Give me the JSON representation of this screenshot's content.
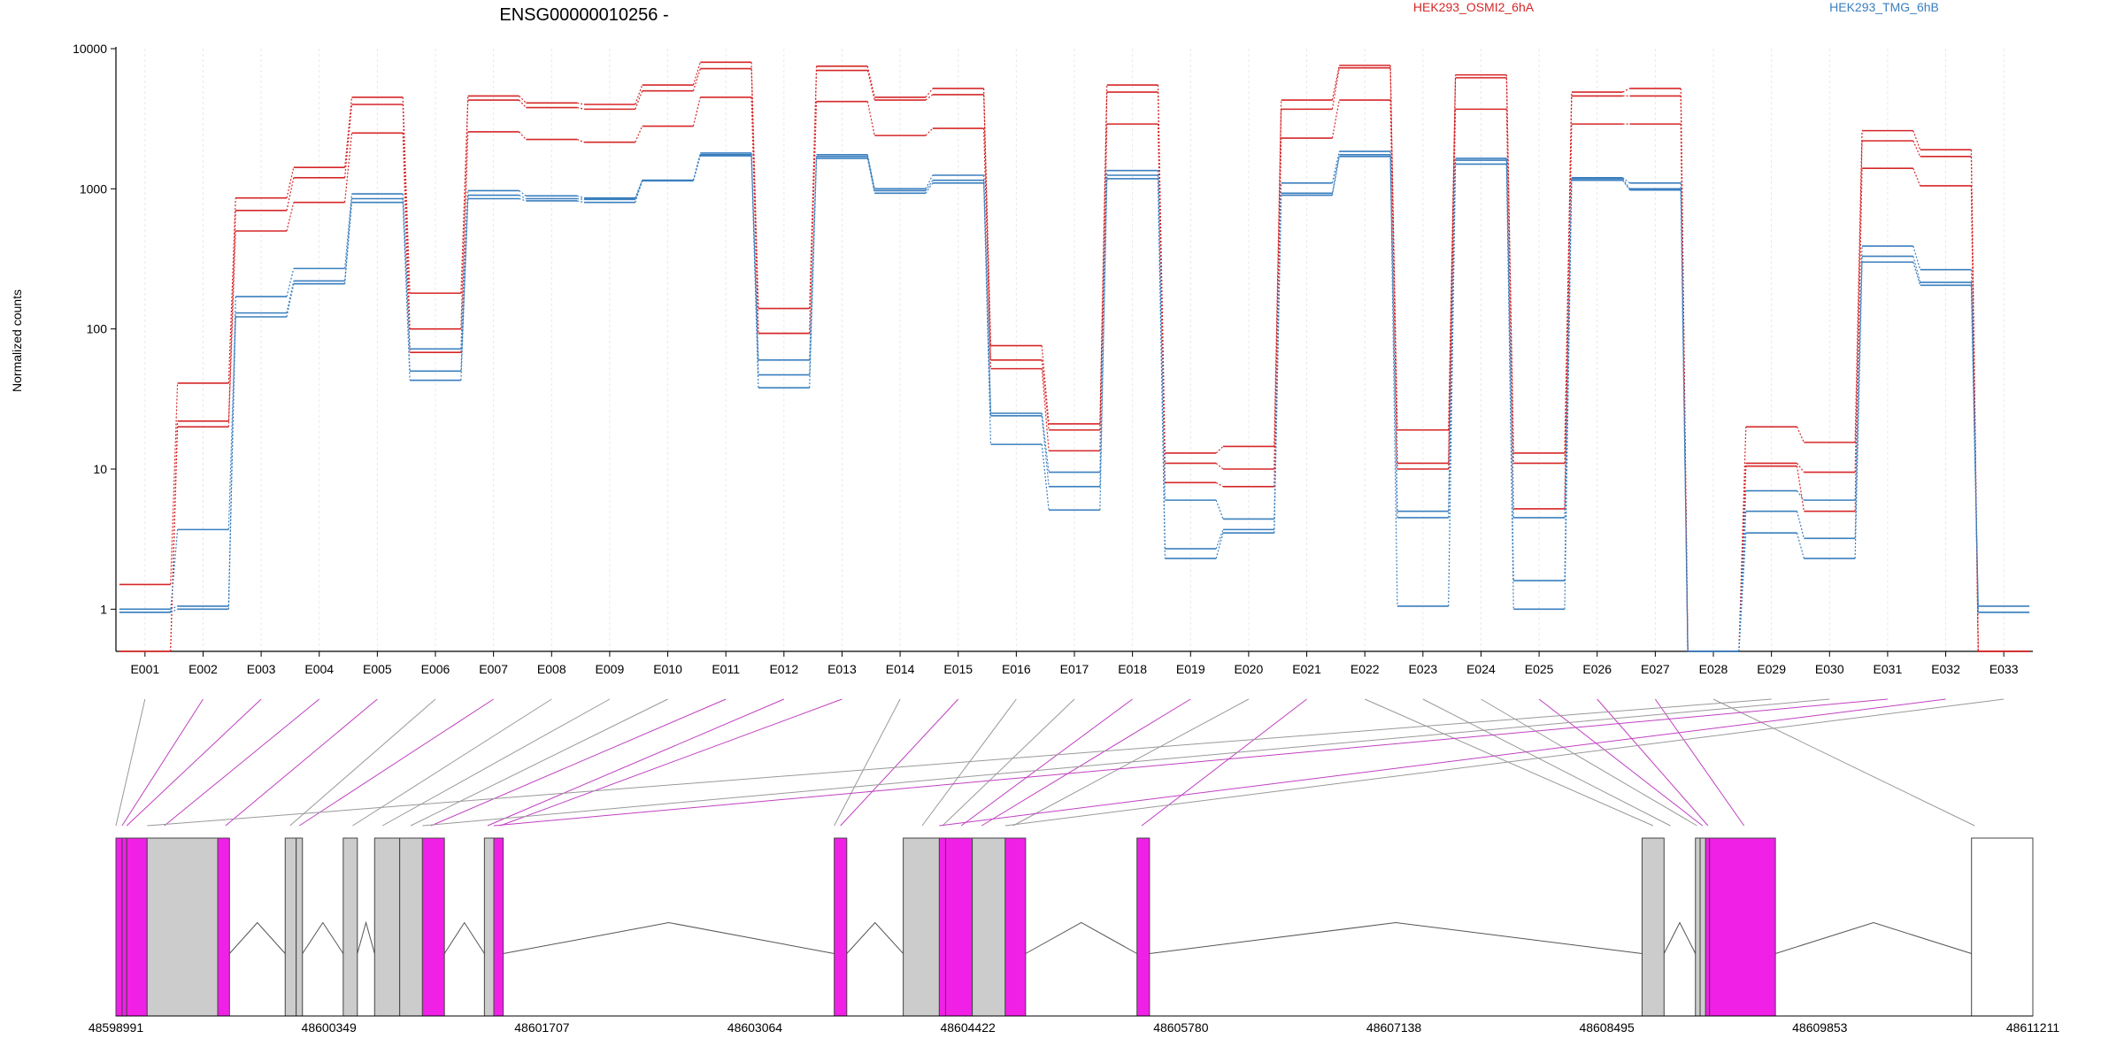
{
  "chart_data": {
    "type": "line",
    "title": "ENSG00000010256 -",
    "ylabel": "Normalized counts",
    "y_scale": "log",
    "ylim": [
      0.5,
      10000
    ],
    "y_ticks": [
      1,
      10,
      100,
      1000,
      10000
    ],
    "y_tick_labels": [
      "1",
      "10",
      "100",
      "1000",
      "10000"
    ],
    "categories": [
      "E001",
      "E002",
      "E003",
      "E004",
      "E005",
      "E006",
      "E007",
      "E008",
      "E009",
      "E010",
      "E011",
      "E012",
      "E013",
      "E014",
      "E015",
      "E016",
      "E017",
      "E018",
      "E019",
      "E020",
      "E021",
      "E022",
      "E023",
      "E024",
      "E025",
      "E026",
      "E027",
      "E028",
      "E029",
      "E030",
      "E031",
      "E032",
      "E033"
    ],
    "groups": [
      {
        "name": "HEK293_OSMI2_6hA",
        "color": "#d62728"
      },
      {
        "name": "HEK293_TMG_6hB",
        "color": "#3a7fbf"
      }
    ],
    "series": [
      {
        "group": 0,
        "values": [
          1.5,
          41,
          860,
          1420,
          4500,
          180,
          4600,
          4100,
          4000,
          5500,
          8000,
          140,
          7500,
          4500,
          5200,
          76,
          21,
          5500,
          13,
          14.5,
          4300,
          7600,
          19,
          6500,
          13,
          4900,
          5200,
          0.5,
          20,
          15.5,
          2600,
          1900,
          0.5
        ]
      },
      {
        "group": 0,
        "values": [
          0.5,
          22,
          700,
          1200,
          4000,
          100,
          4300,
          3800,
          3700,
          5000,
          7200,
          93,
          7000,
          4300,
          4700,
          60,
          19,
          4900,
          11,
          10,
          3700,
          7300,
          11,
          6200,
          11,
          4600,
          4600,
          0.5,
          11,
          9.5,
          2200,
          1700,
          0.5
        ]
      },
      {
        "group": 0,
        "values": [
          0.5,
          20,
          500,
          800,
          2500,
          68,
          2550,
          2250,
          2150,
          2800,
          4500,
          93,
          4200,
          2400,
          2700,
          52,
          13.5,
          2900,
          8,
          7.5,
          2300,
          4300,
          10,
          3700,
          5.2,
          2900,
          2900,
          0.5,
          10.5,
          5,
          1400,
          1050,
          0.5
        ]
      },
      {
        "group": 1,
        "values": [
          1.0,
          1.05,
          170,
          270,
          920,
          72,
          970,
          890,
          860,
          1150,
          1800,
          60,
          1750,
          1000,
          1250,
          25,
          9.5,
          1350,
          6,
          4.4,
          1100,
          1850,
          5,
          1650,
          4.5,
          1200,
          1100,
          0.5,
          7,
          6,
          390,
          265,
          1.05
        ]
      },
      {
        "group": 1,
        "values": [
          0.95,
          3.7,
          130,
          220,
          850,
          50,
          900,
          850,
          840,
          1150,
          1750,
          47,
          1700,
          970,
          1150,
          24,
          7.5,
          1250,
          2.7,
          3.7,
          930,
          1750,
          4.5,
          1600,
          1.6,
          1180,
          1000,
          0.5,
          5,
          3.2,
          330,
          215,
          0.95
        ]
      },
      {
        "group": 1,
        "values": [
          0.95,
          1.0,
          122,
          210,
          800,
          43,
          850,
          820,
          800,
          1140,
          1720,
          38,
          1650,
          930,
          1100,
          15,
          5.1,
          1180,
          2.3,
          3.5,
          900,
          1700,
          1.05,
          1500,
          1.0,
          1150,
          980,
          0.5,
          3.5,
          2.3,
          300,
          205,
          0.95
        ]
      }
    ],
    "gene_model": {
      "x_start": 48598991,
      "x_end": 48611211,
      "x_ticks": [
        48598991,
        48600349,
        48601707,
        48603064,
        48604422,
        48605780,
        48607138,
        48608495,
        48609853,
        48611211
      ],
      "x_tick_labels": [
        "48598991",
        "48600349",
        "48601707",
        "48603064",
        "48604422",
        "48605780",
        "48607138",
        "48608495",
        "48609853",
        "48611211"
      ],
      "exon_colors": {
        "highlight": "#f020e6",
        "normal": "#cccccc",
        "empty": "#ffffff"
      },
      "exons": [
        {
          "start": 48598991,
          "end": 48599030,
          "color": "highlight",
          "target": 48598991
        },
        {
          "start": 48599030,
          "end": 48599060,
          "color": "highlight",
          "target": 48599030
        },
        {
          "start": 48599060,
          "end": 48599190,
          "color": "highlight",
          "target": 48599060
        },
        {
          "start": 48599190,
          "end": 48599640,
          "color": "normal",
          "target": 48599300
        },
        {
          "start": 48599640,
          "end": 48599715,
          "color": "highlight",
          "target": 48599690
        },
        {
          "start": 48600070,
          "end": 48600140,
          "color": "normal",
          "target": 48600100
        },
        {
          "start": 48600140,
          "end": 48600180,
          "color": "normal",
          "target": 48600160
        },
        {
          "start": 48600440,
          "end": 48600530,
          "color": "normal",
          "target": 48600500
        },
        {
          "start": 48600640,
          "end": 48600800,
          "color": "normal",
          "target": 48600690
        },
        {
          "start": 48600800,
          "end": 48600945,
          "color": "normal",
          "target": 48600870
        },
        {
          "start": 48600945,
          "end": 48601085,
          "color": "highlight",
          "target": 48601000
        },
        {
          "start": 48601340,
          "end": 48601400,
          "color": "normal",
          "target": 48601360
        },
        {
          "start": 48601400,
          "end": 48601460,
          "color": "highlight",
          "target": 48601440
        },
        {
          "start": 48603570,
          "end": 48603650,
          "color": "highlight",
          "target": 48603610
        },
        {
          "start": 48604010,
          "end": 48604240,
          "color": "normal",
          "target": 48604130
        },
        {
          "start": 48604240,
          "end": 48604280,
          "color": "highlight",
          "target": 48604260
        },
        {
          "start": 48604280,
          "end": 48604450,
          "color": "highlight",
          "target": 48604380
        },
        {
          "start": 48604450,
          "end": 48604660,
          "color": "normal",
          "target": 48604510
        },
        {
          "start": 48604660,
          "end": 48604790,
          "color": "highlight",
          "target": 48604710
        },
        {
          "start": 48605500,
          "end": 48605580,
          "color": "highlight",
          "target": 48605530
        },
        {
          "start": 48608720,
          "end": 48608860,
          "color": "normal",
          "target": 48608790
        },
        {
          "start": 48609060,
          "end": 48609090,
          "color": "normal",
          "target": 48609070
        },
        {
          "start": 48609090,
          "end": 48609125,
          "color": "normal",
          "target": 48609105
        },
        {
          "start": 48609125,
          "end": 48609150,
          "color": "highlight",
          "target": 48609140
        },
        {
          "start": 48609150,
          "end": 48609570,
          "color": "highlight",
          "target": 48609370
        },
        {
          "start": 48610820,
          "end": 48611211,
          "color": "empty",
          "target": 48610840
        }
      ],
      "exon_ids": [
        "E001",
        "E002",
        "E003",
        "E004",
        "E005",
        "E006",
        "E007",
        "E008",
        "E009",
        "E010",
        "E011",
        "E012",
        "E013",
        "E014",
        "E015",
        "E016",
        "E017",
        "E018",
        "E019",
        "E020",
        "E021",
        "E022",
        "E023",
        "E024",
        "E025",
        "E026",
        "E027",
        "E028",
        "E029",
        "E030",
        "E031",
        "E032",
        "E033"
      ],
      "connector_targets": [
        48598991,
        48599030,
        48599060,
        48599300,
        48599690,
        48600100,
        48600160,
        48600500,
        48600690,
        48600870,
        48601000,
        48601360,
        48601440,
        48603570,
        48603610,
        48604130,
        48604260,
        48604380,
        48604510,
        48604710,
        48605530,
        48608790,
        48608900,
        48609070,
        48609105,
        48609140,
        48609370,
        48610840,
        48599190,
        48600945,
        48601400,
        48604240,
        48604660
      ],
      "connector_colors": [
        "gray",
        "highlight",
        "highlight",
        "highlight",
        "highlight",
        "gray",
        "highlight",
        "gray",
        "gray",
        "gray",
        "highlight",
        "highlight",
        "highlight",
        "gray",
        "highlight",
        "gray",
        "gray",
        "highlight",
        "highlight",
        "gray",
        "highlight",
        "gray",
        "gray",
        "gray",
        "highlight",
        "highlight",
        "highlight",
        "gray",
        "gray",
        "gray",
        "highlight",
        "highlight",
        "gray"
      ]
    }
  }
}
